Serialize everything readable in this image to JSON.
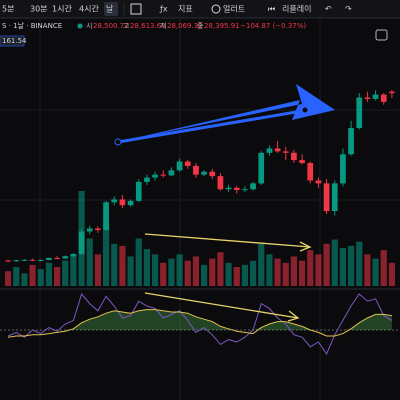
{
  "toolbar": {
    "intervals": [
      "5분",
      "30분",
      "1시간",
      "4시간",
      "날"
    ],
    "indicators": "지표",
    "alert": "얼러트",
    "replay": "리플레이"
  },
  "header": {
    "symbol": "S · 1날 · BINANCE",
    "open_label": "시",
    "open": "28,500.77",
    "high_label": "고",
    "high": "28,613.65",
    "low_label": "저",
    "low": "28,069.32",
    "close_label": "종",
    "close": "28,395.91",
    "change": "−104.87 (−0.37%)",
    "price_tag": "161.54"
  },
  "chart_data": {
    "type": "candlestick",
    "candles": [
      [
        16900,
        16960,
        16820,
        16880
      ],
      [
        16880,
        16950,
        16800,
        16920
      ],
      [
        16920,
        17000,
        16870,
        16950
      ],
      [
        16950,
        17020,
        16880,
        16910
      ],
      [
        16910,
        16980,
        16850,
        16940
      ],
      [
        16940,
        17100,
        16900,
        17080
      ],
      [
        17080,
        17200,
        16990,
        17050
      ],
      [
        17050,
        17250,
        17000,
        17200
      ],
      [
        17200,
        17400,
        17150,
        17350
      ],
      [
        17350,
        19100,
        17300,
        18900
      ],
      [
        18900,
        19300,
        18700,
        19100
      ],
      [
        19100,
        19250,
        18800,
        19000
      ],
      [
        19000,
        21000,
        18950,
        20900
      ],
      [
        20900,
        21300,
        20700,
        21100
      ],
      [
        21100,
        21400,
        20500,
        20700
      ],
      [
        20700,
        21100,
        20600,
        21000
      ],
      [
        21000,
        22500,
        20900,
        22300
      ],
      [
        22300,
        22800,
        22100,
        22600
      ],
      [
        22600,
        23000,
        22400,
        22800
      ],
      [
        22800,
        23100,
        22600,
        22750
      ],
      [
        22750,
        23300,
        22700,
        23100
      ],
      [
        23100,
        23900,
        23000,
        23700
      ],
      [
        23700,
        23800,
        23200,
        23400
      ],
      [
        23400,
        23600,
        22600,
        22800
      ],
      [
        22800,
        23100,
        22700,
        23000
      ],
      [
        23000,
        23200,
        22500,
        22700
      ],
      [
        22700,
        22900,
        21700,
        21800
      ],
      [
        21800,
        22100,
        21600,
        21900
      ],
      [
        21900,
        22000,
        21500,
        21750
      ],
      [
        21750,
        22000,
        21600,
        21800
      ],
      [
        21800,
        22300,
        21700,
        22200
      ],
      [
        22200,
        24400,
        22100,
        24300
      ],
      [
        24300,
        24800,
        24100,
        24600
      ],
      [
        24600,
        25100,
        24300,
        24400
      ],
      [
        24400,
        24700,
        23800,
        24300
      ],
      [
        24300,
        24500,
        23600,
        23800
      ],
      [
        23800,
        24200,
        23500,
        23600
      ],
      [
        23600,
        23700,
        22200,
        22400
      ],
      [
        22400,
        22600,
        21900,
        22200
      ],
      [
        22200,
        22500,
        20100,
        20300
      ],
      [
        20300,
        22400,
        20000,
        22200
      ],
      [
        22200,
        24600,
        22000,
        24200
      ],
      [
        24200,
        26500,
        24100,
        26000
      ],
      [
        26000,
        28400,
        25900,
        28100
      ],
      [
        28100,
        28500,
        27800,
        28000
      ],
      [
        28000,
        28600,
        27900,
        28300
      ],
      [
        28300,
        28400,
        27600,
        27800
      ],
      [
        28500.77,
        28613.65,
        28069.32,
        28395.91
      ]
    ],
    "volume": [
      14,
      18,
      12,
      20,
      16,
      22,
      18,
      24,
      30,
      90,
      45,
      30,
      60,
      40,
      38,
      28,
      45,
      35,
      30,
      22,
      26,
      30,
      24,
      28,
      20,
      26,
      32,
      22,
      18,
      20,
      24,
      40,
      30,
      26,
      22,
      28,
      24,
      34,
      30,
      40,
      44,
      36,
      38,
      42,
      30,
      26,
      34,
      22
    ],
    "up_color": "#089981",
    "down_color": "#f23645",
    "rsi": [
      45,
      48,
      44,
      50,
      47,
      52,
      49,
      55,
      58,
      80,
      72,
      66,
      78,
      70,
      60,
      62,
      74,
      70,
      68,
      60,
      63,
      66,
      58,
      48,
      52,
      46,
      38,
      42,
      40,
      44,
      50,
      72,
      68,
      60,
      55,
      46,
      44,
      36,
      40,
      30,
      46,
      58,
      70,
      80,
      74,
      76,
      62,
      58
    ],
    "signal": [
      44,
      45,
      45,
      46,
      46,
      47,
      48,
      49,
      51,
      56,
      59,
      61,
      64,
      66,
      65,
      64,
      66,
      67,
      67,
      66,
      65,
      65,
      64,
      61,
      59,
      57,
      53,
      51,
      49,
      48,
      47,
      52,
      55,
      57,
      57,
      55,
      53,
      50,
      48,
      45,
      45,
      47,
      51,
      56,
      60,
      63,
      63,
      62
    ],
    "rsi_color": "#7e57c2",
    "signal_color": "#e0c14f",
    "rsi_levels": [
      50
    ]
  }
}
